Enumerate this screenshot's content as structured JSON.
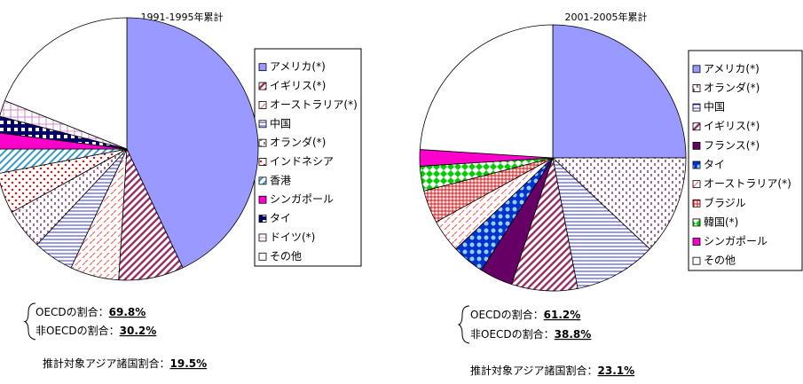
{
  "chart_data": [
    {
      "type": "pie",
      "title": "1991-1995年累計",
      "categories": [
        "アメリカ(*)",
        "イギリス(*)",
        "オーストラリア(*)",
        "中国",
        "オランダ(*)",
        "インドネシア",
        "香港",
        "シンガポール",
        "タイ",
        "ドイツ(*)",
        "その他"
      ],
      "values": [
        43,
        8,
        6,
        5,
        5,
        5,
        3,
        2,
        2,
        2,
        19
      ],
      "colors": [
        "#9999ff",
        "#993366",
        "#ff6666",
        "#3333cc",
        "#993366",
        "#ff0000",
        "#3399cc",
        "#ff00cc",
        "#000066",
        "#cc66cc",
        "#ffffff"
      ],
      "annotations": {
        "oecd_label": "OECDの割合：",
        "oecd": "69.8%",
        "non_oecd_label": "非OECDの割合：",
        "non_oecd": "30.2%",
        "asia_label": "推計対象アジア諸国割合：",
        "asia": "19.5%"
      }
    },
    {
      "type": "pie",
      "title": "2001-2005年累計",
      "categories": [
        "アメリカ(*)",
        "オランダ(*)",
        "中国",
        "イギリス(*)",
        "フランス(*)",
        "タイ",
        "オーストラリア(*)",
        "ブラジル",
        "韓国(*)",
        "シンガポール",
        "その他"
      ],
      "values": [
        25,
        12,
        10,
        8,
        4,
        4,
        4,
        4,
        3,
        2,
        24
      ],
      "colors": [
        "#9999ff",
        "#993366",
        "#3333cc",
        "#993366",
        "#660066",
        "#0033cc",
        "#ff6666",
        "#ff0000",
        "#00cc00",
        "#ff00cc",
        "#ffffff"
      ],
      "annotations": {
        "oecd_label": "OECDの割合：",
        "oecd": "61.2%",
        "non_oecd_label": "非OECDの割合：",
        "non_oecd": "38.8%",
        "asia_label": "推計対象アジア諸国割合：",
        "asia": "23.1%"
      }
    }
  ]
}
